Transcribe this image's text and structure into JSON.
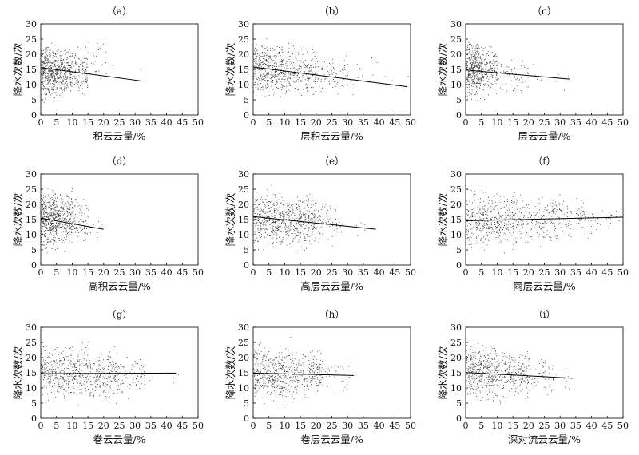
{
  "figure": {
    "ylabel": "降水次数/次",
    "x_ticks": [
      0,
      5,
      10,
      15,
      20,
      25,
      30,
      35,
      40,
      45,
      50
    ],
    "y_ticks": [
      0,
      5,
      10,
      15,
      20,
      25,
      30
    ],
    "xlim": [
      0,
      50
    ],
    "ylim": [
      0,
      30
    ],
    "grid": false,
    "point_color": "#333333",
    "line_color": "#000000"
  },
  "chart_data": [
    {
      "type": "scatter",
      "panel": "（a）",
      "xlabel": "积云云量/%",
      "ylabel": "降水次数/次",
      "xlim": [
        0,
        50
      ],
      "ylim": [
        0,
        30
      ],
      "point_density": [
        {
          "x_range": [
            0,
            5
          ],
          "y_range": [
            3,
            26
          ],
          "weight": 5
        },
        {
          "x_range": [
            5,
            10
          ],
          "y_range": [
            4,
            25
          ],
          "weight": 3
        },
        {
          "x_range": [
            10,
            15
          ],
          "y_range": [
            5,
            24
          ],
          "weight": 1.5
        },
        {
          "x_range": [
            15,
            22
          ],
          "y_range": [
            6,
            27
          ],
          "weight": 0.3
        },
        {
          "x_range": [
            22,
            32
          ],
          "y_range": [
            9,
            19
          ],
          "weight": 0.05
        }
      ],
      "trend_line": {
        "x": [
          0,
          32
        ],
        "y": [
          15.6,
          11.2
        ]
      }
    },
    {
      "type": "scatter",
      "panel": "（b）",
      "xlabel": "层积云云量/%",
      "ylabel": "降水次数/次",
      "xlim": [
        0,
        50
      ],
      "ylim": [
        0,
        30
      ],
      "point_density": [
        {
          "x_range": [
            0,
            10
          ],
          "y_range": [
            3,
            27
          ],
          "weight": 5
        },
        {
          "x_range": [
            10,
            20
          ],
          "y_range": [
            4,
            25
          ],
          "weight": 3
        },
        {
          "x_range": [
            20,
            30
          ],
          "y_range": [
            5,
            22
          ],
          "weight": 1
        },
        {
          "x_range": [
            30,
            42
          ],
          "y_range": [
            6,
            20
          ],
          "weight": 0.2
        },
        {
          "x_range": [
            42,
            50
          ],
          "y_range": [
            8,
            16
          ],
          "weight": 0.05
        }
      ],
      "trend_line": {
        "x": [
          0,
          49
        ],
        "y": [
          15.8,
          9.3
        ]
      }
    },
    {
      "type": "scatter",
      "panel": "（c）",
      "xlabel": "层云云量/%",
      "ylabel": "降水次数/次",
      "xlim": [
        0,
        50
      ],
      "ylim": [
        0,
        30
      ],
      "point_density": [
        {
          "x_range": [
            0,
            5
          ],
          "y_range": [
            3,
            27
          ],
          "weight": 5
        },
        {
          "x_range": [
            5,
            10
          ],
          "y_range": [
            4,
            25
          ],
          "weight": 2
        },
        {
          "x_range": [
            10,
            20
          ],
          "y_range": [
            5,
            22
          ],
          "weight": 0.8
        },
        {
          "x_range": [
            20,
            33
          ],
          "y_range": [
            7,
            20
          ],
          "weight": 0.1
        }
      ],
      "trend_line": {
        "x": [
          0,
          33
        ],
        "y": [
          14.8,
          11.8
        ]
      }
    },
    {
      "type": "scatter",
      "panel": "（d）",
      "xlabel": "高积云云量/%",
      "ylabel": "降水次数/次",
      "xlim": [
        0,
        50
      ],
      "ylim": [
        0,
        30
      ],
      "point_density": [
        {
          "x_range": [
            0,
            5
          ],
          "y_range": [
            3,
            27
          ],
          "weight": 5
        },
        {
          "x_range": [
            5,
            10
          ],
          "y_range": [
            4,
            26
          ],
          "weight": 3
        },
        {
          "x_range": [
            10,
            15
          ],
          "y_range": [
            5,
            25
          ],
          "weight": 1
        },
        {
          "x_range": [
            15,
            20
          ],
          "y_range": [
            7,
            18
          ],
          "weight": 0.1
        }
      ],
      "trend_line": {
        "x": [
          0,
          20
        ],
        "y": [
          15.5,
          11.8
        ]
      }
    },
    {
      "type": "scatter",
      "panel": "（e）",
      "xlabel": "高层云云量/%",
      "ylabel": "降水次数/次",
      "xlim": [
        0,
        50
      ],
      "ylim": [
        0,
        30
      ],
      "point_density": [
        {
          "x_range": [
            0,
            10
          ],
          "y_range": [
            3,
            27
          ],
          "weight": 5
        },
        {
          "x_range": [
            10,
            20
          ],
          "y_range": [
            3,
            26
          ],
          "weight": 4
        },
        {
          "x_range": [
            20,
            28
          ],
          "y_range": [
            5,
            23
          ],
          "weight": 1
        },
        {
          "x_range": [
            28,
            40
          ],
          "y_range": [
            8,
            18
          ],
          "weight": 0.1
        }
      ],
      "trend_line": {
        "x": [
          0,
          39
        ],
        "y": [
          16.0,
          11.8
        ]
      }
    },
    {
      "type": "scatter",
      "panel": "（f）",
      "xlabel": "雨层云云量/%",
      "ylabel": "降水次数/次",
      "xlim": [
        0,
        50
      ],
      "ylim": [
        0,
        30
      ],
      "point_density": [
        {
          "x_range": [
            0,
            15
          ],
          "y_range": [
            3,
            27
          ],
          "weight": 5
        },
        {
          "x_range": [
            15,
            30
          ],
          "y_range": [
            4,
            26
          ],
          "weight": 3
        },
        {
          "x_range": [
            30,
            40
          ],
          "y_range": [
            8,
            23
          ],
          "weight": 1
        },
        {
          "x_range": [
            40,
            50
          ],
          "y_range": [
            10,
            20
          ],
          "weight": 0.3
        }
      ],
      "trend_line": {
        "x": [
          0,
          50
        ],
        "y": [
          14.6,
          15.8
        ]
      }
    },
    {
      "type": "scatter",
      "panel": "（g）",
      "xlabel": "卷云云量/%",
      "ylabel": "降水次数/次",
      "xlim": [
        0,
        50
      ],
      "ylim": [
        0,
        30
      ],
      "point_density": [
        {
          "x_range": [
            0,
            15
          ],
          "y_range": [
            3,
            27
          ],
          "weight": 5
        },
        {
          "x_range": [
            15,
            25
          ],
          "y_range": [
            4,
            25
          ],
          "weight": 3
        },
        {
          "x_range": [
            25,
            33
          ],
          "y_range": [
            6,
            22
          ],
          "weight": 1
        },
        {
          "x_range": [
            33,
            44
          ],
          "y_range": [
            9,
            20
          ],
          "weight": 0.1
        }
      ],
      "trend_line": {
        "x": [
          0,
          43
        ],
        "y": [
          14.7,
          14.9
        ]
      }
    },
    {
      "type": "scatter",
      "panel": "（h）",
      "xlabel": "卷层云云量/%",
      "ylabel": "降水次数/次",
      "xlim": [
        0,
        50
      ],
      "ylim": [
        0,
        30
      ],
      "point_density": [
        {
          "x_range": [
            0,
            12
          ],
          "y_range": [
            3,
            27
          ],
          "weight": 5
        },
        {
          "x_range": [
            12,
            22
          ],
          "y_range": [
            4,
            25
          ],
          "weight": 3
        },
        {
          "x_range": [
            22,
            32
          ],
          "y_range": [
            6,
            22
          ],
          "weight": 0.4
        }
      ],
      "trend_line": {
        "x": [
          0,
          32
        ],
        "y": [
          14.9,
          14.1
        ]
      }
    },
    {
      "type": "scatter",
      "panel": "（i）",
      "xlabel": "深对流云云量/%",
      "ylabel": "降水次数/次",
      "xlim": [
        0,
        50
      ],
      "ylim": [
        0,
        30
      ],
      "point_density": [
        {
          "x_range": [
            0,
            10
          ],
          "y_range": [
            3,
            27
          ],
          "weight": 5
        },
        {
          "x_range": [
            10,
            20
          ],
          "y_range": [
            4,
            25
          ],
          "weight": 3
        },
        {
          "x_range": [
            20,
            28
          ],
          "y_range": [
            6,
            22
          ],
          "weight": 0.7
        },
        {
          "x_range": [
            28,
            34
          ],
          "y_range": [
            9,
            18
          ],
          "weight": 0.1
        }
      ],
      "trend_line": {
        "x": [
          0,
          34
        ],
        "y": [
          15.1,
          13.2
        ]
      }
    }
  ]
}
